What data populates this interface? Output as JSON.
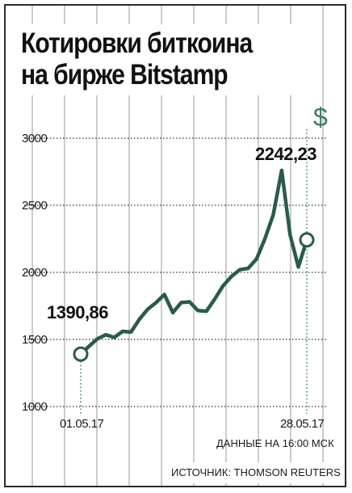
{
  "title": {
    "line1": "Котировки биткоина",
    "line2": "на бирже Bitstamp"
  },
  "currency_symbol": "$",
  "time_note": "ДАННЫЕ НА 16:00 МСК",
  "source": "ИСТОЧНИК: THOMSON REUTERS",
  "colors": {
    "line": "#2a5a4e",
    "grid": "#9a9a9a",
    "guide": "#3d7a6a",
    "text": "#1b1b1b",
    "frame": "#2b2b2b"
  },
  "chart_data": {
    "type": "line",
    "ylim": [
      1000,
      3000
    ],
    "yticks": [
      1000,
      1500,
      2000,
      2500,
      3000
    ],
    "grid": true,
    "x_start_label": "01.05.17",
    "x_end_label": "28.05.17",
    "series": [
      {
        "values": [
          1390.86,
          1450,
          1505,
          1535,
          1515,
          1560,
          1555,
          1650,
          1725,
          1775,
          1835,
          1700,
          1775,
          1780,
          1715,
          1710,
          1800,
          1900,
          1970,
          2020,
          2030,
          2100,
          2250,
          2430,
          2760,
          2280,
          2040,
          2242.23
        ]
      }
    ],
    "annotations": [
      {
        "label": "1390,86",
        "index": 0
      },
      {
        "label": "2242,23",
        "index": 27
      }
    ]
  }
}
